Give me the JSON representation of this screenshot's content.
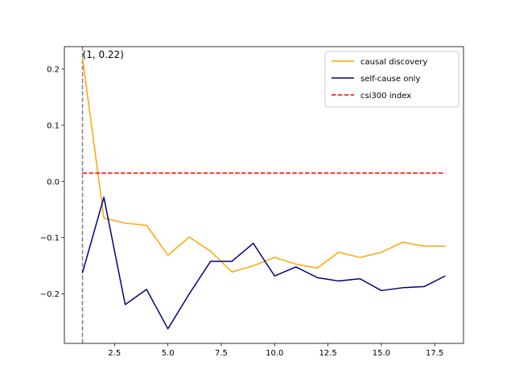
{
  "chart_data": {
    "type": "line",
    "title": "",
    "xlabel": "",
    "ylabel": "",
    "xlim": [
      0.15,
      18.85
    ],
    "ylim": [
      -0.288,
      0.24
    ],
    "x_ticks": [
      2.5,
      5.0,
      7.5,
      10.0,
      12.5,
      15.0,
      17.5
    ],
    "x_tick_labels": [
      "2.5",
      "5.0",
      "7.5",
      "10.0",
      "12.5",
      "15.0",
      "17.5"
    ],
    "y_ticks": [
      -0.2,
      -0.1,
      0.0,
      0.1,
      0.2
    ],
    "y_tick_labels": [
      "−0.2",
      "−0.1",
      "0.0",
      "0.1",
      "0.2"
    ],
    "grid": false,
    "legend_position": "top-right",
    "series": [
      {
        "name": "causal discovery",
        "color": "#ffa500",
        "style": "solid",
        "x": [
          1,
          2,
          3,
          4,
          5,
          6,
          7,
          8,
          9,
          10,
          11,
          12,
          13,
          14,
          15,
          16,
          17,
          18
        ],
        "values": [
          0.22,
          -0.065,
          -0.074,
          -0.078,
          -0.131,
          -0.099,
          -0.124,
          -0.161,
          -0.15,
          -0.135,
          -0.147,
          -0.154,
          -0.126,
          -0.135,
          -0.126,
          -0.108,
          -0.115,
          -0.115
        ]
      },
      {
        "name": "self-cause only",
        "color": "#000080",
        "style": "solid",
        "x": [
          1,
          2,
          3,
          4,
          5,
          6,
          7,
          8,
          9,
          10,
          11,
          12,
          13,
          14,
          15,
          16,
          17,
          18
        ],
        "values": [
          -0.162,
          -0.028,
          -0.219,
          -0.192,
          -0.262,
          -0.2,
          -0.142,
          -0.142,
          -0.11,
          -0.168,
          -0.152,
          -0.171,
          -0.177,
          -0.173,
          -0.194,
          -0.189,
          -0.187,
          -0.168
        ]
      },
      {
        "name": "csi300 index",
        "color": "#ff0000",
        "style": "dashed",
        "x": [
          1,
          18
        ],
        "values": [
          0.015,
          0.015
        ]
      }
    ],
    "vline": {
      "x": 1,
      "color": "#808080",
      "style": "dashed"
    },
    "annotations": [
      {
        "text": "(1, 0.22)",
        "x": 1,
        "y": 0.22
      }
    ]
  }
}
